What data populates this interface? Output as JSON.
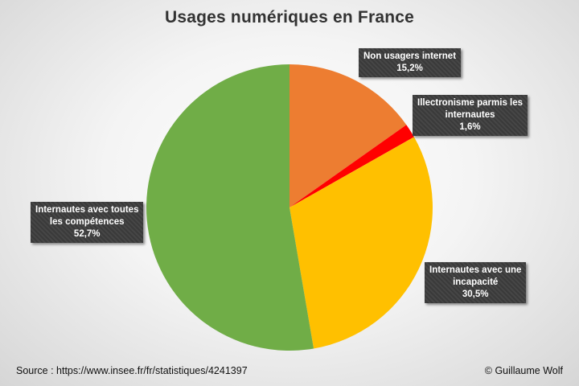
{
  "chart_data": {
    "type": "pie",
    "title": "Usages numériques en France",
    "slices": [
      {
        "label_lines": [
          "Non usagers internet"
        ],
        "value_label": "15,2%",
        "value": 15.2,
        "color": "#ed7d31"
      },
      {
        "label_lines": [
          "Illectronisme parmis les",
          "internautes"
        ],
        "value_label": "1,6%",
        "value": 1.6,
        "color": "#ff0000"
      },
      {
        "label_lines": [
          "Internautes avec une",
          "incapacité"
        ],
        "value_label": "30,5%",
        "value": 30.5,
        "color": "#ffc000"
      },
      {
        "label_lines": [
          "Internautes avec toutes",
          "les compétences"
        ],
        "value_label": "52,7%",
        "value": 52.7,
        "color": "#70ad47"
      }
    ],
    "start_angle_deg": 0,
    "direction": "clockwise"
  },
  "footer": {
    "source": "Source : https://www.insee.fr/fr/statistiques/4241397",
    "credit": "© Guillaume Wolf"
  }
}
